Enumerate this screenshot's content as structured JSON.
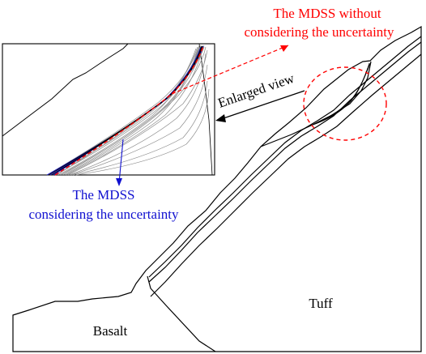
{
  "labels": {
    "mdss_without_line1": "The MDSS without",
    "mdss_without_line2": "considering the uncertainty",
    "mdss_with_line1": "The MDSS",
    "mdss_with_line2": "considering the uncertainty",
    "enlarged_view": "Enlarged view",
    "basalt": "Basalt",
    "tuff": "Tuff"
  },
  "colors": {
    "without_uncertainty": "#ff0000",
    "with_uncertainty": "#1010d0",
    "outline": "#000000",
    "sample_surfaces": "#8a8a8a"
  }
}
